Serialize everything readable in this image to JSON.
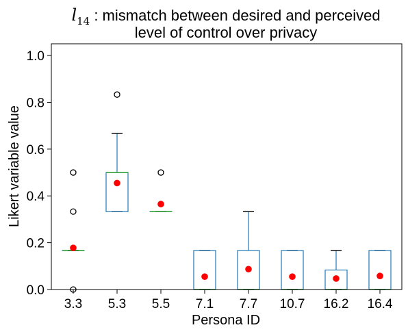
{
  "chart_data": {
    "type": "box",
    "title": {
      "symbol": "l",
      "subscript": "14",
      "line1_rest": " : mismatch between desired and perceived",
      "line2": "level of control over privacy"
    },
    "xlabel": "Persona ID",
    "ylabel": "Likert variable value",
    "ylim": [
      0.0,
      1.05
    ],
    "yticks": [
      0.0,
      0.2,
      0.4,
      0.6,
      0.8,
      1.0
    ],
    "ytick_labels": [
      "0.0",
      "0.2",
      "0.4",
      "0.6",
      "0.8",
      "1.0"
    ],
    "grid": false,
    "colors": {
      "box": "#1f77b4",
      "median": "#2ca02c",
      "mean": "#ff0000",
      "whisker_cap": "#000000",
      "flier": "#000000"
    },
    "categories": [
      "3.3",
      "5.3",
      "5.5",
      "7.1",
      "7.7",
      "10.7",
      "16.2",
      "16.4"
    ],
    "boxes": [
      {
        "q1": 0.1667,
        "median": 0.1667,
        "q3": 0.1667,
        "whislo": 0.1667,
        "whishi": 0.1667,
        "mean": 0.178,
        "fliers": [
          0.0,
          0.333,
          0.5
        ]
      },
      {
        "q1": 0.333,
        "median": 0.5,
        "q3": 0.5,
        "whislo": 0.333,
        "whishi": 0.667,
        "mean": 0.455,
        "fliers": [
          0.833
        ]
      },
      {
        "q1": 0.333,
        "median": 0.333,
        "q3": 0.333,
        "whislo": 0.333,
        "whishi": 0.333,
        "mean": 0.365,
        "fliers": [
          0.5
        ]
      },
      {
        "q1": 0.0,
        "median": 0.0,
        "q3": 0.1667,
        "whislo": 0.0,
        "whishi": 0.1667,
        "mean": 0.055,
        "fliers": []
      },
      {
        "q1": 0.0,
        "median": 0.0,
        "q3": 0.1667,
        "whislo": 0.0,
        "whishi": 0.333,
        "mean": 0.087,
        "fliers": []
      },
      {
        "q1": 0.0,
        "median": 0.0,
        "q3": 0.1667,
        "whislo": 0.0,
        "whishi": 0.1667,
        "mean": 0.055,
        "fliers": []
      },
      {
        "q1": 0.0,
        "median": 0.0,
        "q3": 0.0833,
        "whislo": 0.0,
        "whishi": 0.1667,
        "mean": 0.047,
        "fliers": []
      },
      {
        "q1": 0.0,
        "median": 0.0,
        "q3": 0.1667,
        "whislo": 0.0,
        "whishi": 0.1667,
        "mean": 0.058,
        "fliers": []
      }
    ]
  }
}
